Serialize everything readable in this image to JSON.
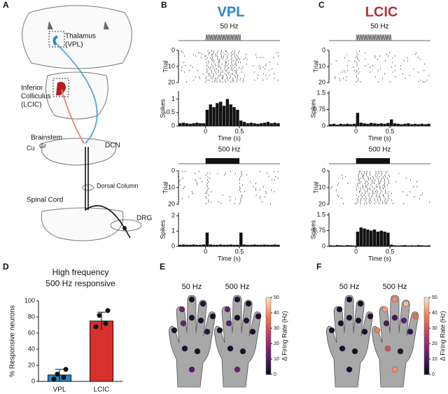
{
  "figure": {
    "A": {
      "label": "A",
      "thalamus": [
        "Thalamus",
        "(VPL)"
      ],
      "colliculus": [
        "Inferior",
        "Colliculus",
        "(LCIC)"
      ],
      "brainstem": "Brainstem",
      "cu": "Cu",
      "gr": "Gr",
      "dcn": "DCN",
      "dorsal_column": "Dorsal Column",
      "spinal_cord": "Spinal Cord",
      "drg": "DRG"
    },
    "B": {
      "label": "B",
      "title": "VPL",
      "color": "#2a86c8"
    },
    "C": {
      "label": "C",
      "title": "LCIC",
      "color": "#b8323a"
    },
    "E": {
      "label": "E",
      "hands": [
        {
          "title": "50 Hz",
          "values": [
            3,
            15,
            2,
            4,
            2,
            14,
            3,
            2,
            5,
            3,
            2,
            12
          ]
        },
        {
          "title": "500 Hz",
          "values": [
            2,
            14,
            3,
            2,
            3,
            12,
            2,
            4,
            3,
            2,
            3,
            15
          ]
        }
      ],
      "colorbar": {
        "lim": [
          0,
          50
        ],
        "ticks": [
          0,
          10,
          20,
          30,
          40,
          50
        ],
        "label": "Δ Firing Rate (Hz)",
        "colormap": [
          "#0d0a1e",
          "#5c1f6e",
          "#b23a6b",
          "#f07a52",
          "#fce3c4"
        ]
      }
    },
    "F": {
      "label": "F",
      "hands": [
        {
          "title": "50 Hz",
          "values": [
            2,
            3,
            2,
            2,
            3,
            2,
            3,
            2,
            2,
            3,
            2,
            2
          ]
        },
        {
          "title": "500 Hz",
          "values": [
            38,
            42,
            40,
            45,
            36,
            10,
            8,
            12,
            6,
            30,
            5,
            40
          ]
        }
      ],
      "colorbar": {
        "lim": [
          0,
          50
        ],
        "ticks": [
          0,
          10,
          20,
          30,
          40,
          50
        ],
        "label": "Δ Firing Rate (Hz)",
        "colormap": [
          "#0d0a1e",
          "#5c1f6e",
          "#b23a6b",
          "#f07a52",
          "#fce3c4"
        ]
      }
    }
  },
  "chart_data": [
    {
      "type": "histogram",
      "title": "50 Hz",
      "raster_ylabel": "Trial",
      "raster_ylim": [
        0,
        20
      ],
      "raster_yticks": [
        0,
        10,
        20
      ],
      "ylabel": "Spikes",
      "xlabel": "Time (s)",
      "xlim": [
        -0.4,
        1.1
      ],
      "xticks": [
        0,
        0.5
      ],
      "ylim": [
        0,
        1.3
      ],
      "yticks": [
        0,
        0.5,
        1
      ],
      "color": "#111111",
      "stimulus": "sine",
      "bins": [
        -0.4,
        -0.35,
        -0.3,
        -0.25,
        -0.2,
        -0.15,
        -0.1,
        -0.05,
        0,
        0.05,
        0.1,
        0.15,
        0.2,
        0.25,
        0.3,
        0.35,
        0.4,
        0.45,
        0.5,
        0.55,
        0.6,
        0.65,
        0.7,
        0.75,
        0.8,
        0.85,
        0.9,
        0.95,
        1,
        1.05,
        1.1
      ],
      "values": [
        0.1,
        0.12,
        0.1,
        0.08,
        0.1,
        0.12,
        0.1,
        0.1,
        0.6,
        0.8,
        0.7,
        0.85,
        0.9,
        0.75,
        1.0,
        0.8,
        0.7,
        0.6,
        0.2,
        0.15,
        0.1,
        0.12,
        0.1,
        0.08,
        0.1,
        0.12,
        0.15,
        0.1,
        0.12,
        0.1
      ]
    },
    {
      "type": "histogram",
      "title": "500 Hz",
      "raster_ylabel": "Trial",
      "raster_ylim": [
        0,
        20
      ],
      "raster_yticks": [
        0,
        10,
        20
      ],
      "ylabel": "Spikes",
      "xlabel": "Time (s)",
      "xlim": [
        -0.4,
        1.1
      ],
      "xticks": [
        0,
        0.5
      ],
      "ylim": [
        0,
        2.2
      ],
      "yticks": [
        0,
        1,
        2
      ],
      "color": "#111111",
      "stimulus": "block",
      "bins": [
        -0.4,
        -0.35,
        -0.3,
        -0.25,
        -0.2,
        -0.15,
        -0.1,
        -0.05,
        0,
        0.05,
        0.1,
        0.15,
        0.2,
        0.25,
        0.3,
        0.35,
        0.4,
        0.45,
        0.5,
        0.55,
        0.6,
        0.65,
        0.7,
        0.75,
        0.8,
        0.85,
        0.9,
        0.95,
        1,
        1.05,
        1.1
      ],
      "values": [
        0.1,
        0.12,
        0.1,
        0.1,
        0.12,
        0.1,
        0.1,
        0.12,
        0.9,
        0.12,
        0.1,
        0.1,
        0.12,
        0.1,
        0.1,
        0.12,
        0.1,
        0.1,
        0.9,
        0.12,
        0.1,
        0.1,
        0.12,
        0.1,
        0.1,
        0.12,
        0.1,
        0.1,
        0.12,
        0.1
      ]
    },
    {
      "type": "histogram",
      "title": "50 Hz",
      "raster_ylabel": "Trial",
      "raster_ylim": [
        0,
        20
      ],
      "raster_yticks": [
        0,
        10,
        20
      ],
      "ylabel": "Spikes",
      "xlabel": "Time (s)",
      "xlim": [
        -0.4,
        1.1
      ],
      "xticks": [
        0,
        0.5
      ],
      "ylim": [
        0,
        1.6
      ],
      "yticks": [
        0,
        0.75,
        1.5
      ],
      "color": "#111111",
      "stimulus": "sine",
      "bins": [
        -0.4,
        -0.35,
        -0.3,
        -0.25,
        -0.2,
        -0.15,
        -0.1,
        -0.05,
        0,
        0.05,
        0.1,
        0.15,
        0.2,
        0.25,
        0.3,
        0.35,
        0.4,
        0.45,
        0.5,
        0.55,
        0.6,
        0.65,
        0.7,
        0.75,
        0.8,
        0.85,
        0.9,
        0.95,
        1,
        1.05,
        1.1
      ],
      "values": [
        0.08,
        0.1,
        0.06,
        0.1,
        0.08,
        0.1,
        0.08,
        0.1,
        0.6,
        0.15,
        0.12,
        0.1,
        0.14,
        0.12,
        0.1,
        0.12,
        0.1,
        0.14,
        0.3,
        0.12,
        0.1,
        0.08,
        0.1,
        0.12,
        0.08,
        0.1,
        0.08,
        0.1,
        0.08,
        0.1
      ]
    },
    {
      "type": "histogram",
      "title": "500 Hz",
      "raster_ylabel": "Trial",
      "raster_ylim": [
        0,
        20
      ],
      "raster_yticks": [
        0,
        10,
        20
      ],
      "ylabel": "Spikes",
      "xlabel": "Time (s)",
      "xlim": [
        -0.4,
        1.1
      ],
      "xticks": [
        0,
        0.5
      ],
      "ylim": [
        0,
        1.6
      ],
      "yticks": [
        0,
        0.75,
        1.5
      ],
      "color": "#111111",
      "stimulus": "block",
      "bins": [
        -0.4,
        -0.35,
        -0.3,
        -0.25,
        -0.2,
        -0.15,
        -0.1,
        -0.05,
        0,
        0.05,
        0.1,
        0.15,
        0.2,
        0.25,
        0.3,
        0.35,
        0.4,
        0.45,
        0.5,
        0.55,
        0.6,
        0.65,
        0.7,
        0.75,
        0.8,
        0.85,
        0.9,
        0.95,
        1,
        1.05,
        1.1
      ],
      "values": [
        0.05,
        0.04,
        0.06,
        0.05,
        0.04,
        0.06,
        0.05,
        0.04,
        0.7,
        0.9,
        0.85,
        0.8,
        0.75,
        0.8,
        0.7,
        0.75,
        0.7,
        0.65,
        0.08,
        0.05,
        0.04,
        0.05,
        0.06,
        0.04,
        0.05,
        0.04,
        0.06,
        0.05,
        0.04,
        0.05
      ]
    },
    {
      "type": "bar",
      "panel_label": "D",
      "title": "High frequency",
      "subtitle": "500 Hz responsive",
      "ylabel": "% Responsive neurons",
      "categories": [
        "VPL",
        "LCIC"
      ],
      "values": [
        8,
        75
      ],
      "errors": [
        7,
        11
      ],
      "colors": [
        "#2a86c8",
        "#d8302c"
      ],
      "points": [
        [
          3,
          5,
          9,
          15
        ],
        [
          68,
          72,
          82,
          88
        ]
      ],
      "ylim": [
        0,
        100
      ],
      "yticks": [
        0,
        20,
        40,
        60,
        80,
        100
      ]
    }
  ]
}
